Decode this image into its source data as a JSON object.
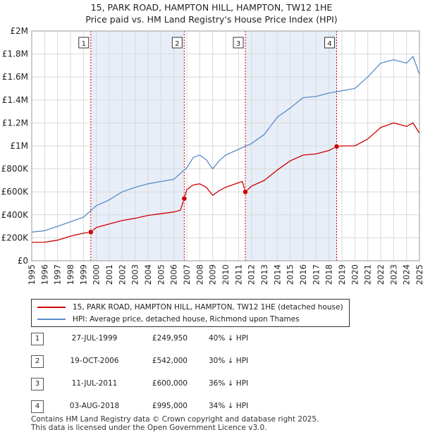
{
  "title_line1": "15, PARK ROAD, HAMPTON HILL, HAMPTON, TW12 1HE",
  "title_line2": "Price paid vs. HM Land Registry's House Price Index (HPI)",
  "chart_data": {
    "type": "line",
    "x_range": [
      1995,
      2025
    ],
    "y_range": [
      0,
      2000000
    ],
    "y_ticks": [
      {
        "value": 0,
        "label": "£0"
      },
      {
        "value": 200000,
        "label": "£200K"
      },
      {
        "value": 400000,
        "label": "£400K"
      },
      {
        "value": 600000,
        "label": "£600K"
      },
      {
        "value": 800000,
        "label": "£800K"
      },
      {
        "value": 1000000,
        "label": "£1M"
      },
      {
        "value": 1200000,
        "label": "£1.2M"
      },
      {
        "value": 1400000,
        "label": "£1.4M"
      },
      {
        "value": 1600000,
        "label": "£1.6M"
      },
      {
        "value": 1800000,
        "label": "£1.8M"
      },
      {
        "value": 2000000,
        "label": "£2M"
      }
    ],
    "x_ticks": [
      1995,
      1996,
      1997,
      1998,
      1999,
      2000,
      2001,
      2002,
      2003,
      2004,
      2005,
      2006,
      2007,
      2008,
      2009,
      2010,
      2011,
      2012,
      2013,
      2014,
      2015,
      2016,
      2017,
      2018,
      2019,
      2020,
      2021,
      2022,
      2023,
      2024,
      2025
    ],
    "grid": true,
    "shaded_periods": [
      [
        1999.57,
        2006.8
      ],
      [
        2011.53,
        2018.59
      ]
    ],
    "series": [
      {
        "name": "15, PARK ROAD, HAMPTON HILL, HAMPTON, TW12 1HE (detached house)",
        "color": "#cc0000",
        "points": [
          [
            1995,
            160000
          ],
          [
            1996,
            162000
          ],
          [
            1997,
            180000
          ],
          [
            1998,
            215000
          ],
          [
            1999,
            240000
          ],
          [
            1999.57,
            249950
          ],
          [
            2000,
            290000
          ],
          [
            2001,
            320000
          ],
          [
            2002,
            350000
          ],
          [
            2003,
            370000
          ],
          [
            2004,
            395000
          ],
          [
            2005,
            410000
          ],
          [
            2006,
            425000
          ],
          [
            2006.5,
            440000
          ],
          [
            2006.8,
            542000
          ],
          [
            2007,
            620000
          ],
          [
            2007.5,
            660000
          ],
          [
            2008,
            670000
          ],
          [
            2008.5,
            640000
          ],
          [
            2009,
            570000
          ],
          [
            2009.5,
            610000
          ],
          [
            2010,
            640000
          ],
          [
            2011,
            680000
          ],
          [
            2011.3,
            690000
          ],
          [
            2011.53,
            600000
          ],
          [
            2012,
            650000
          ],
          [
            2013,
            700000
          ],
          [
            2014,
            790000
          ],
          [
            2014.5,
            830000
          ],
          [
            2015,
            870000
          ],
          [
            2016,
            920000
          ],
          [
            2017,
            930000
          ],
          [
            2018,
            960000
          ],
          [
            2018.59,
            995000
          ],
          [
            2019,
            1000000
          ],
          [
            2020,
            1000000
          ],
          [
            2021,
            1060000
          ],
          [
            2022,
            1160000
          ],
          [
            2023,
            1200000
          ],
          [
            2024,
            1170000
          ],
          [
            2024.5,
            1200000
          ],
          [
            2025,
            1110000
          ]
        ]
      },
      {
        "name": "HPI: Average price, detached house, Richmond upon Thames",
        "color": "#5b8cc9",
        "points": [
          [
            1995,
            250000
          ],
          [
            1996,
            262000
          ],
          [
            1997,
            300000
          ],
          [
            1998,
            340000
          ],
          [
            1999,
            380000
          ],
          [
            2000,
            480000
          ],
          [
            2001,
            530000
          ],
          [
            2002,
            600000
          ],
          [
            2003,
            640000
          ],
          [
            2004,
            670000
          ],
          [
            2005,
            690000
          ],
          [
            2006,
            710000
          ],
          [
            2007,
            810000
          ],
          [
            2007.5,
            900000
          ],
          [
            2008,
            920000
          ],
          [
            2008.5,
            880000
          ],
          [
            2009,
            800000
          ],
          [
            2009.5,
            870000
          ],
          [
            2010,
            920000
          ],
          [
            2011,
            970000
          ],
          [
            2012,
            1020000
          ],
          [
            2013,
            1100000
          ],
          [
            2014,
            1250000
          ],
          [
            2015,
            1330000
          ],
          [
            2016,
            1420000
          ],
          [
            2017,
            1430000
          ],
          [
            2018,
            1460000
          ],
          [
            2019,
            1480000
          ],
          [
            2020,
            1500000
          ],
          [
            2021,
            1600000
          ],
          [
            2022,
            1720000
          ],
          [
            2023,
            1750000
          ],
          [
            2024,
            1720000
          ],
          [
            2024.5,
            1780000
          ],
          [
            2025,
            1620000
          ]
        ]
      }
    ],
    "sales": [
      {
        "label": "1",
        "year": 1999.57,
        "price": 249950
      },
      {
        "label": "2",
        "year": 2006.8,
        "price": 542000
      },
      {
        "label": "3",
        "year": 2011.53,
        "price": 600000
      },
      {
        "label": "4",
        "year": 2018.59,
        "price": 995000
      }
    ],
    "legend_placement": "below"
  },
  "legend": {
    "series1_label": "15, PARK ROAD, HAMPTON HILL, HAMPTON, TW12 1HE (detached house)",
    "series2_label": "HPI: Average price, detached house, Richmond upon Thames"
  },
  "sales_table": [
    {
      "num": "1",
      "date": "27-JUL-1999",
      "price": "£249,950",
      "hpi": "40% ↓ HPI"
    },
    {
      "num": "2",
      "date": "19-OCT-2006",
      "price": "£542,000",
      "hpi": "30% ↓ HPI"
    },
    {
      "num": "3",
      "date": "11-JUL-2011",
      "price": "£600,000",
      "hpi": "36% ↓ HPI"
    },
    {
      "num": "4",
      "date": "03-AUG-2018",
      "price": "£995,000",
      "hpi": "34% ↓ HPI"
    }
  ],
  "footer_line1": "Contains HM Land Registry data © Crown copyright and database right 2025.",
  "footer_line2": "This data is licensed under the Open Government Licence v3.0.",
  "colors": {
    "red": "#cc0000",
    "blue": "#5b8cc9",
    "shade": "#e8eef8",
    "grid": "#d9d9d9"
  }
}
